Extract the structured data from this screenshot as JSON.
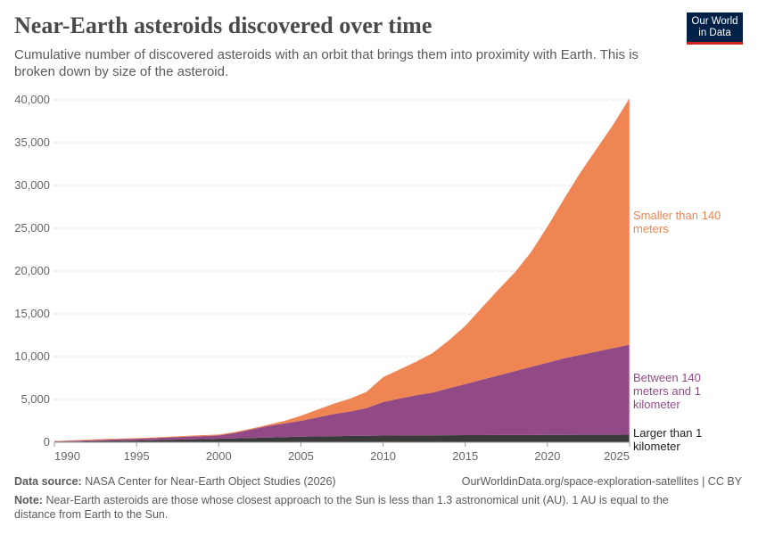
{
  "header": {
    "title": "Near-Earth asteroids discovered over time",
    "subtitle": "Cumulative number of discovered asteroids with an orbit that brings them into proximity with Earth. This is broken down by size of the asteroid.",
    "logo": "Our World in Data",
    "logo_line1": "Our World",
    "logo_line2": "in Data"
  },
  "chart_data": {
    "type": "area",
    "stacked": true,
    "x": [
      1990,
      1991,
      1992,
      1993,
      1994,
      1995,
      1996,
      1997,
      1998,
      1999,
      2000,
      2001,
      2002,
      2003,
      2004,
      2005,
      2006,
      2007,
      2008,
      2009,
      2010,
      2011,
      2012,
      2013,
      2014,
      2015,
      2016,
      2017,
      2018,
      2019,
      2020,
      2021,
      2022,
      2023,
      2024,
      2025
    ],
    "xticks": [
      "1990",
      "1995",
      "2000",
      "2005",
      "2010",
      "2015",
      "2020",
      "2025"
    ],
    "yticks": [
      "0",
      "5,000",
      "10,000",
      "15,000",
      "20,000",
      "25,000",
      "30,000",
      "35,000",
      "40,000"
    ],
    "ylim": [
      0,
      40000
    ],
    "grid": true,
    "legend_placement": "right (inline labels)",
    "series": [
      {
        "name": "Larger than 1 kilometer",
        "color": "#3a3a3a",
        "values": [
          50,
          80,
          110,
          140,
          170,
          200,
          240,
          280,
          320,
          360,
          400,
          450,
          500,
          550,
          600,
          650,
          680,
          710,
          740,
          760,
          780,
          790,
          800,
          810,
          820,
          830,
          835,
          840,
          845,
          850,
          860,
          865,
          870,
          875,
          878,
          880
        ]
      },
      {
        "name": "Between 140 meters and 1 kilometer",
        "color": "#924a86",
        "values": [
          50,
          80,
          110,
          150,
          180,
          200,
          240,
          280,
          320,
          360,
          400,
          650,
          1000,
          1350,
          1600,
          1850,
          2220,
          2590,
          2860,
          3240,
          3920,
          4310,
          4700,
          4990,
          5480,
          5970,
          6465,
          6960,
          7455,
          7950,
          8440,
          8935,
          9330,
          9725,
          10122,
          10520
        ]
      },
      {
        "name": "Smaller than 140 meters",
        "color": "#ee8552",
        "values": [
          50,
          60,
          80,
          90,
          80,
          80,
          80,
          90,
          100,
          110,
          100,
          100,
          100,
          150,
          300,
          600,
          900,
          1200,
          1500,
          1900,
          2900,
          3400,
          3900,
          4600,
          5600,
          6800,
          8400,
          10000,
          11500,
          13400,
          15900,
          18600,
          21300,
          23700,
          26100,
          28800
        ]
      }
    ]
  },
  "labels": {
    "larger": [
      "Larger than 1",
      "kilometer"
    ],
    "between": [
      "Between 140",
      "meters and 1",
      "kilometer"
    ],
    "smaller": [
      "Smaller than 140",
      "meters"
    ]
  },
  "footer": {
    "source_label": "Data source:",
    "source": "NASA Center for Near-Earth Object Studies (2026)",
    "url": "OurWorldinData.org/space-exploration-satellites | CC BY",
    "note_label": "Note:",
    "note": "Near-Earth asteroids are those whose closest approach to the Sun is less than 1.3 astronomical unit (AU). 1 AU is equal to the distance from Earth to the Sun."
  }
}
